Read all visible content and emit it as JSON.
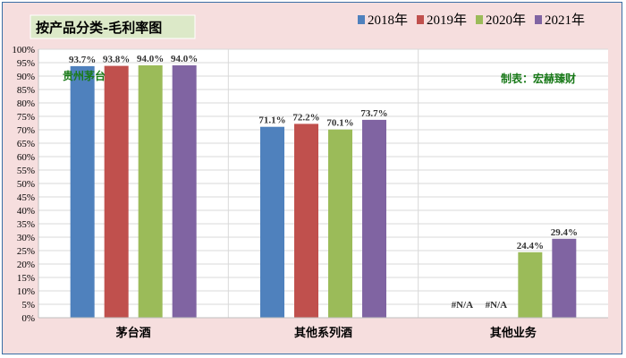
{
  "chart_data": {
    "type": "bar",
    "title": "按产品分类-毛利率图",
    "categories": [
      "茅台酒",
      "其他系列酒",
      "其他业务"
    ],
    "series": [
      {
        "name": "2018年",
        "color": "#4f81bd",
        "values": [
          93.7,
          71.1,
          null
        ],
        "labels": [
          "93.7%",
          "71.1%",
          "#N/A"
        ]
      },
      {
        "name": "2019年",
        "color": "#c0504d",
        "values": [
          93.8,
          72.2,
          null
        ],
        "labels": [
          "93.8%",
          "72.2%",
          "#N/A"
        ]
      },
      {
        "name": "2020年",
        "color": "#9bbb59",
        "values": [
          94.0,
          70.1,
          24.4
        ],
        "labels": [
          "94.0%",
          "70.1%",
          "24.4%"
        ]
      },
      {
        "name": "2021年",
        "color": "#8064a2",
        "values": [
          94.0,
          73.7,
          29.4
        ],
        "labels": [
          "94.0%",
          "73.7%",
          "29.4%"
        ]
      }
    ],
    "ylim": [
      0,
      100
    ],
    "yticks": [
      "0%",
      "5%",
      "10%",
      "15%",
      "20%",
      "25%",
      "30%",
      "35%",
      "40%",
      "45%",
      "50%",
      "55%",
      "60%",
      "65%",
      "70%",
      "75%",
      "80%",
      "85%",
      "90%",
      "95%",
      "100%"
    ],
    "grid": true,
    "legend_position": "top-right",
    "annotations": [
      "贵州茅台",
      "制表：宏赫臻财"
    ],
    "highlight_label_color": "#1f1fcc",
    "background": "#f6dede",
    "plot_background": "#ffffff"
  }
}
